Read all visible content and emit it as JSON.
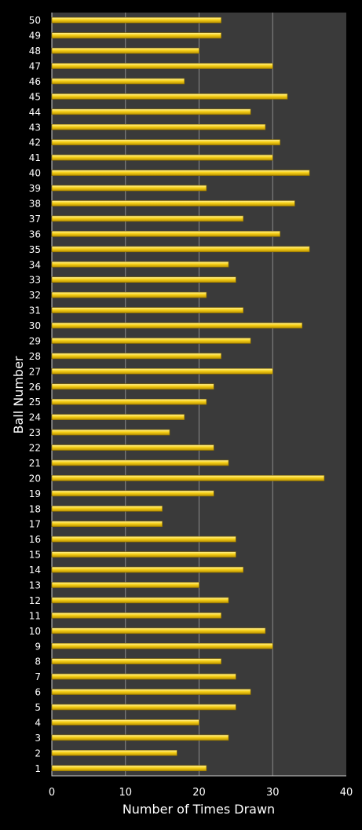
{
  "chart_data": {
    "type": "bar",
    "orientation": "horizontal",
    "title": "",
    "xlabel": "Number of Times Drawn",
    "ylabel": "Ball Number",
    "xlim": [
      0,
      40
    ],
    "x_ticks": [
      0,
      10,
      20,
      30,
      40
    ],
    "grid": "vertical",
    "legend": "none",
    "categories": [
      "1",
      "2",
      "3",
      "4",
      "5",
      "6",
      "7",
      "8",
      "9",
      "10",
      "11",
      "12",
      "13",
      "14",
      "15",
      "16",
      "17",
      "18",
      "19",
      "20",
      "21",
      "22",
      "23",
      "24",
      "25",
      "26",
      "27",
      "28",
      "29",
      "30",
      "31",
      "32",
      "33",
      "34",
      "35",
      "36",
      "37",
      "38",
      "39",
      "40",
      "41",
      "42",
      "43",
      "44",
      "45",
      "46",
      "47",
      "48",
      "49",
      "50"
    ],
    "values": [
      21,
      17,
      24,
      20,
      25,
      27,
      25,
      23,
      30,
      29,
      23,
      24,
      20,
      26,
      25,
      25,
      15,
      15,
      22,
      37,
      24,
      22,
      16,
      18,
      21,
      22,
      30,
      23,
      27,
      34,
      26,
      21,
      25,
      24,
      35,
      31,
      26,
      33,
      21,
      35,
      30,
      31,
      29,
      27,
      32,
      18,
      30,
      20,
      23,
      23
    ]
  },
  "colors": {
    "background": "#000000",
    "plot_area": "#3a3a3a",
    "bar_fill": "#f7d117",
    "bar_edge": "#8a6d00",
    "gridline": "#8a8a8a",
    "text": "#ffffff"
  }
}
